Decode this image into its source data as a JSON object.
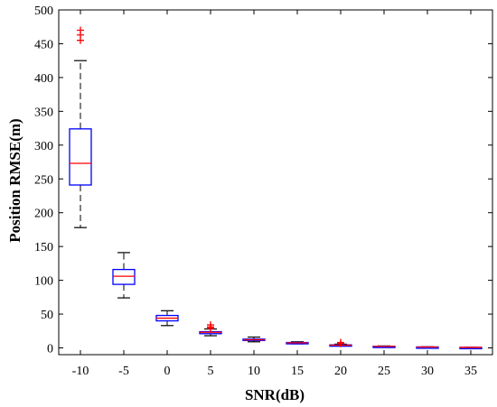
{
  "chart_data": {
    "type": "boxplot",
    "xlabel": "SNR(dB)",
    "ylabel": "Position RMSE(m)",
    "ylim": [
      -10,
      500
    ],
    "yticks": [
      0,
      50,
      100,
      150,
      200,
      250,
      300,
      350,
      400,
      450,
      500
    ],
    "categories": [
      "-10",
      "-5",
      "0",
      "5",
      "10",
      "15",
      "20",
      "25",
      "30",
      "35"
    ],
    "grid": false,
    "legend": "none",
    "colors": {
      "box": "#0000ff",
      "median": "#ff0000",
      "whisker": "#000000",
      "outlier": "#ff0000",
      "axis": "#000000"
    },
    "boxes": [
      {
        "category": "-10",
        "whisker_low": 178,
        "q1": 241,
        "median": 273,
        "q3": 324,
        "whisker_high": 425,
        "outliers": [
          455,
          463,
          470
        ]
      },
      {
        "category": "-5",
        "whisker_low": 74,
        "q1": 94,
        "median": 106,
        "q3": 116,
        "whisker_high": 141,
        "outliers": []
      },
      {
        "category": "0",
        "whisker_low": 33,
        "q1": 40,
        "median": 44,
        "q3": 48,
        "whisker_high": 55,
        "outliers": []
      },
      {
        "category": "5",
        "whisker_low": 18,
        "q1": 21,
        "median": 23,
        "q3": 24,
        "whisker_high": 28,
        "outliers": [
          29,
          31,
          34
        ]
      },
      {
        "category": "10",
        "whisker_low": 9,
        "q1": 11,
        "median": 12,
        "q3": 13,
        "whisker_high": 16,
        "outliers": []
      },
      {
        "category": "15",
        "whisker_low": 6,
        "q1": 7,
        "median": 7.5,
        "q3": 8,
        "whisker_high": 9,
        "outliers": []
      },
      {
        "category": "20",
        "whisker_low": 3,
        "q1": 3.6,
        "median": 4,
        "q3": 4.5,
        "whisker_high": 5.5,
        "outliers": [
          6.5,
          8
        ]
      },
      {
        "category": "25",
        "whisker_low": 1.8,
        "q1": 2.1,
        "median": 2.3,
        "q3": 2.5,
        "whisker_high": 2.9,
        "outliers": []
      },
      {
        "category": "30",
        "whisker_low": 1.0,
        "q1": 1.2,
        "median": 1.3,
        "q3": 1.4,
        "whisker_high": 1.6,
        "outliers": []
      },
      {
        "category": "35",
        "whisker_low": 0.6,
        "q1": 0.7,
        "median": 0.75,
        "q3": 0.8,
        "whisker_high": 0.9,
        "outliers": []
      }
    ]
  }
}
